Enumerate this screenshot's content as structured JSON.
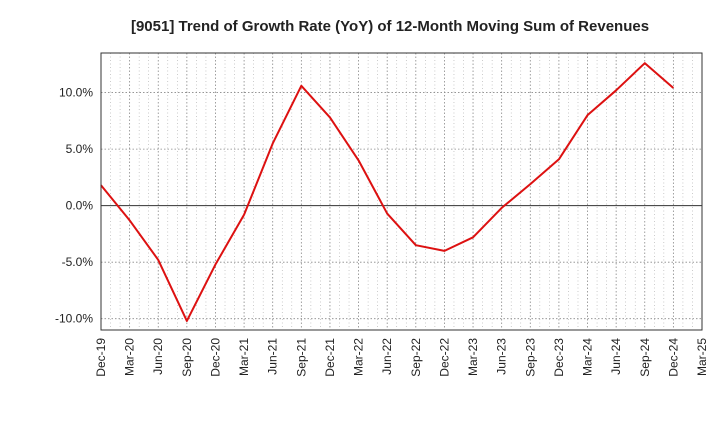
{
  "chart_data": {
    "type": "line",
    "title": "[9051]  Trend of Growth Rate (YoY) of 12-Month Moving Sum of Revenues",
    "xlabel": "",
    "ylabel": "",
    "x": [
      "Dec-19",
      "Mar-20",
      "Jun-20",
      "Sep-20",
      "Dec-20",
      "Mar-21",
      "Jun-21",
      "Sep-21",
      "Dec-21",
      "Mar-22",
      "Jun-22",
      "Sep-22",
      "Dec-22",
      "Mar-23",
      "Jun-23",
      "Sep-23",
      "Dec-23",
      "Mar-24",
      "Jun-24",
      "Sep-24",
      "Dec-24",
      "Mar-25"
    ],
    "ylim": [
      -11,
      13.5
    ],
    "yticks": [
      -10,
      -5,
      0,
      5,
      10
    ],
    "ytick_labels": [
      "-10.0%",
      "-5.0%",
      "0.0%",
      "5.0%",
      "10.0%"
    ],
    "grid": true,
    "series": [
      {
        "color": "#dd1111",
        "values": [
          1.8,
          -1.3,
          -4.8,
          -10.2,
          -5.2,
          -0.8,
          5.5,
          10.6,
          7.8,
          4.0,
          -0.7,
          -3.5,
          -4.0,
          -2.8,
          -0.2,
          1.9,
          4.1,
          8.0,
          10.2,
          12.6,
          10.4,
          null
        ]
      }
    ]
  }
}
